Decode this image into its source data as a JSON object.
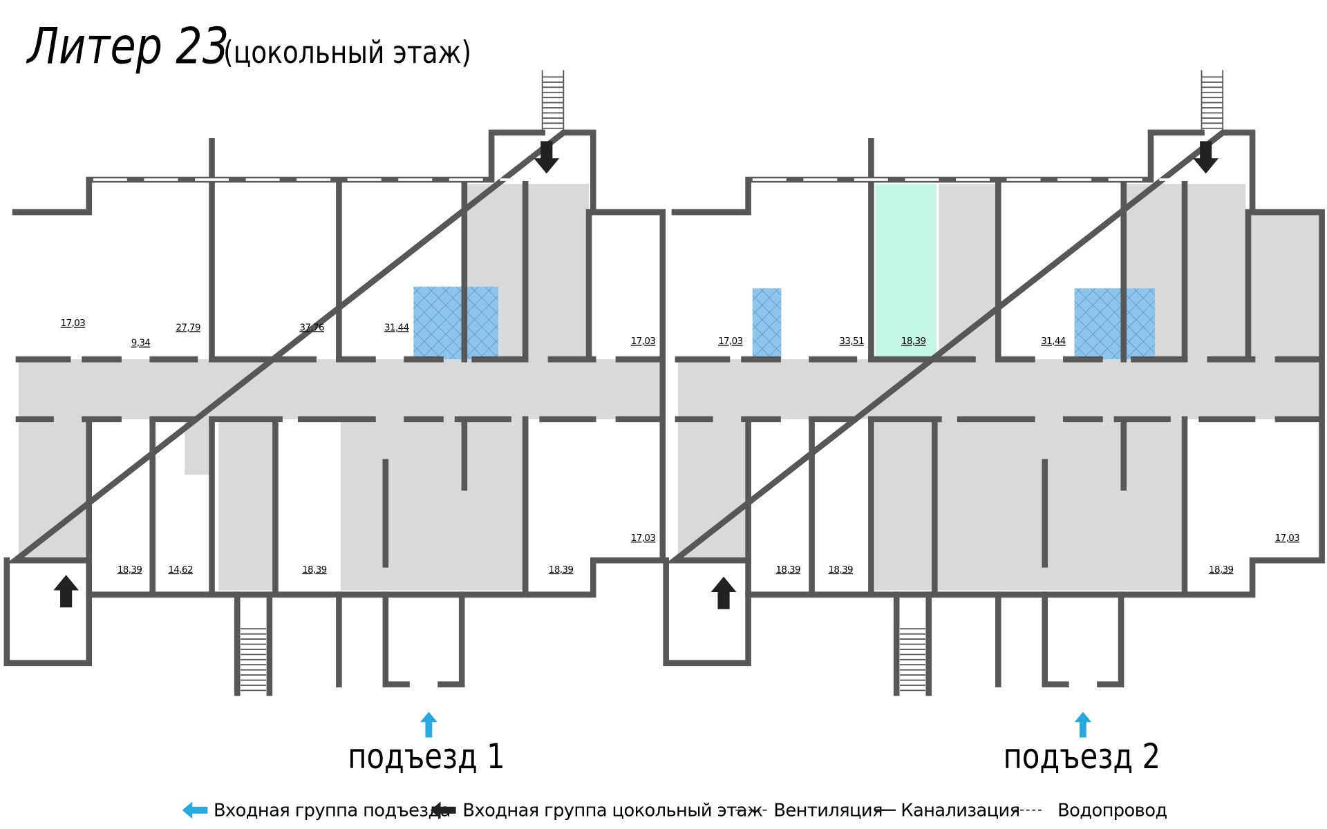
{
  "header": {
    "title": "Литер 23",
    "subtitle": "(цокольный этаж)"
  },
  "rooms": [
    "17,03",
    "9,34",
    "27,79",
    "37,76",
    "31,44",
    "17,03",
    "18,39",
    "14,62",
    "18,39",
    "18,39",
    "17,03",
    "17,03",
    "33,51",
    "18,39",
    "31,44",
    "18,39",
    "18,39",
    "17,03",
    "18,39"
  ],
  "entrances": [
    "подъезд 1",
    "подъезд 2"
  ],
  "legend": [
    "Входная группа подъезда",
    "Входная группа цокольный этаж",
    "Вентиляция",
    "Канализация",
    "Водопровод"
  ]
}
